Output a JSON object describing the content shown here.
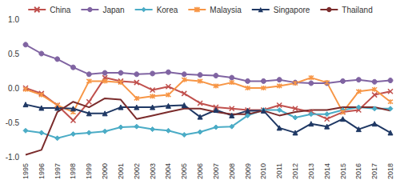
{
  "chart_data": {
    "type": "line",
    "categories": [
      "1995",
      "1996",
      "1997",
      "1998",
      "1999",
      "2000",
      "2001",
      "2002",
      "2003",
      "2004",
      "2005",
      "2006",
      "2007",
      "2008",
      "2009",
      "2010",
      "2011",
      "2012",
      "2013",
      "2014",
      "2015",
      "2016",
      "2017",
      "2018"
    ],
    "series": [
      {
        "name": "China",
        "color": "#c0504d",
        "marker": "x",
        "values": [
          0.0,
          -0.08,
          -0.25,
          -0.47,
          -0.2,
          0.15,
          0.1,
          0.08,
          -0.03,
          0.02,
          -0.08,
          -0.22,
          -0.28,
          -0.3,
          -0.32,
          -0.32,
          -0.25,
          -0.3,
          -0.35,
          -0.45,
          -0.35,
          -0.32,
          -0.1,
          -0.05
        ]
      },
      {
        "name": "Japan",
        "color": "#8064a2",
        "marker": "circle",
        "values": [
          0.63,
          0.5,
          0.42,
          0.3,
          0.2,
          0.22,
          0.22,
          0.2,
          0.21,
          0.23,
          0.2,
          0.19,
          0.18,
          0.15,
          0.1,
          0.1,
          0.12,
          0.08,
          0.07,
          0.07,
          0.1,
          0.12,
          0.09,
          0.11
        ]
      },
      {
        "name": "Korea",
        "color": "#4bacc6",
        "marker": "diamond",
        "values": [
          -0.62,
          -0.65,
          -0.73,
          -0.67,
          -0.65,
          -0.63,
          -0.57,
          -0.56,
          -0.6,
          -0.62,
          -0.68,
          -0.64,
          -0.57,
          -0.56,
          -0.4,
          -0.32,
          -0.32,
          -0.43,
          -0.38,
          -0.38,
          -0.32,
          -0.28,
          -0.3,
          -0.3
        ]
      },
      {
        "name": "Malaysia",
        "color": "#f79646",
        "marker": "asterisk",
        "values": [
          -0.02,
          -0.1,
          -0.25,
          -0.35,
          0.1,
          0.1,
          0.08,
          -0.15,
          -0.12,
          -0.1,
          0.12,
          0.1,
          0.03,
          0.08,
          0.0,
          0.0,
          0.03,
          0.07,
          0.15,
          0.08,
          -0.35,
          -0.05,
          -0.02,
          -0.2
        ]
      },
      {
        "name": "Singapore",
        "color": "#1f3864",
        "marker": "triangle",
        "values": [
          -0.24,
          -0.29,
          -0.29,
          -0.3,
          -0.37,
          -0.37,
          -0.28,
          -0.28,
          -0.28,
          -0.26,
          -0.25,
          -0.42,
          -0.32,
          -0.4,
          -0.33,
          -0.33,
          -0.58,
          -0.65,
          -0.52,
          -0.56,
          -0.45,
          -0.6,
          -0.52,
          -0.65
        ]
      },
      {
        "name": "Thailand",
        "color": "#7b2c2c",
        "marker": "none",
        "values": [
          -0.97,
          -0.9,
          -0.35,
          -0.2,
          -0.28,
          -0.15,
          -0.17,
          -0.45,
          -0.4,
          -0.35,
          -0.3,
          -0.3,
          -0.35,
          -0.38,
          -0.38,
          -0.33,
          -0.4,
          -0.35,
          -0.32,
          -0.32,
          -0.28,
          -0.28,
          -0.28,
          -0.33
        ]
      }
    ],
    "ylim": [
      -1.0,
      1.0
    ],
    "yticks": [
      {
        "value": -1.0,
        "label": "-1.0"
      },
      {
        "value": -0.5,
        "label": "-0.5"
      },
      {
        "value": 0.0,
        "label": "0.0"
      },
      {
        "value": 0.5,
        "label": "0.5"
      },
      {
        "value": 1.0,
        "label": "1.0"
      }
    ],
    "grid": false,
    "legend": "top"
  }
}
